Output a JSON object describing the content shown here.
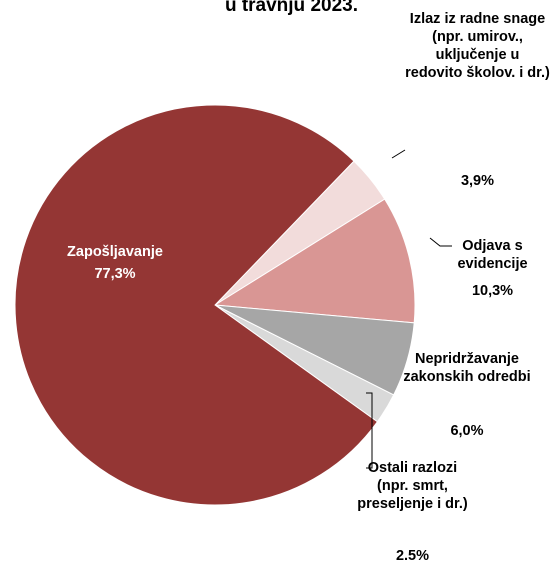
{
  "chart_data": {
    "type": "pie",
    "title": "u travnju 2023.",
    "categories": [
      "Izlaz iz radne snage (npr. umirov., uključenje u redovito školov. i dr.)",
      "Odjava s evidencije",
      "Nepridržavanje zakonskih odredbi",
      "Ostali razlozi (npr. smrt, preseljenje i dr.)",
      "Zapošljavanje"
    ],
    "values": [
      3.9,
      10.3,
      6.0,
      2.5,
      77.3
    ],
    "value_labels": [
      "3,9%",
      "10,3%",
      "6,0%",
      "2.5%",
      "77,3%"
    ],
    "colors": [
      "#f2dcdb",
      "#d99694",
      "#a6a6a6",
      "#d9d9d9",
      "#943634"
    ]
  }
}
